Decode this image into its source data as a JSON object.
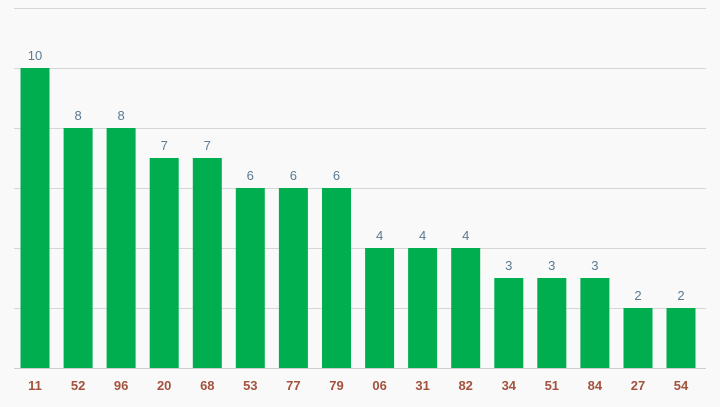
{
  "chart_data": {
    "type": "bar",
    "categories": [
      "11",
      "52",
      "96",
      "20",
      "68",
      "53",
      "77",
      "79",
      "06",
      "31",
      "82",
      "34",
      "51",
      "84",
      "27",
      "54"
    ],
    "values": [
      10,
      8,
      8,
      7,
      7,
      6,
      6,
      6,
      4,
      4,
      4,
      3,
      3,
      3,
      2,
      2
    ],
    "ylim": [
      0,
      12
    ],
    "grid": true,
    "data_labels": true,
    "colors": {
      "bar": "#00ae4f",
      "label": "#5b7a91",
      "tick": "#a3533d",
      "grid": "#d6d6d6",
      "background": "#f9f9f9"
    }
  }
}
